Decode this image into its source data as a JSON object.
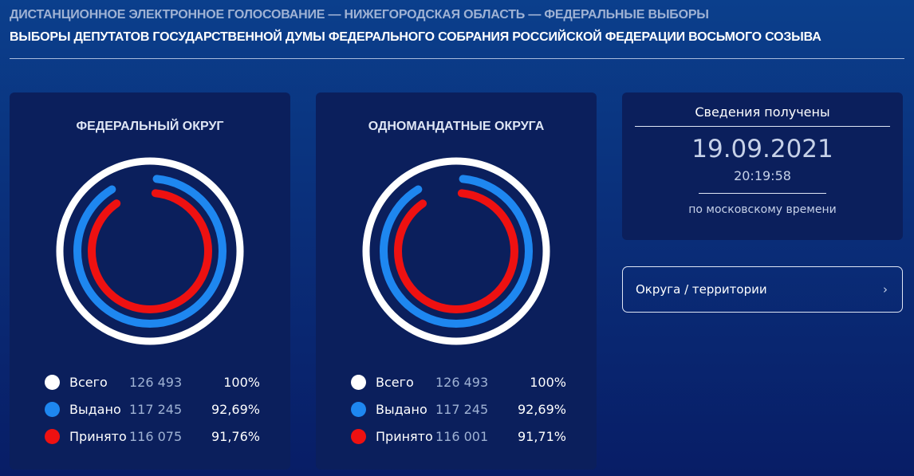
{
  "header": {
    "subtitle": "ДИСТАНЦИОННОЕ ЭЛЕКТРОННОЕ ГОЛОСОВАНИЕ — НИЖЕГОРОДСКАЯ ОБЛАСТЬ — ФЕДЕРАЛЬНЫЕ ВЫБОРЫ",
    "title": "ВЫБОРЫ ДЕПУТАТОВ ГОСУДАРСТВЕННОЙ ДУМЫ ФЕДЕРАЛЬНОГО СОБРАНИЯ РОССИЙСКОЙ ФЕДЕРАЦИИ ВОСЬМОГО СОЗЫВА"
  },
  "colors": {
    "total": "#ffffff",
    "issued": "#1e87f0",
    "accepted": "#ee1111"
  },
  "panels": [
    {
      "title": "ФЕДЕРАЛЬНЫЙ ОКРУГ",
      "rows": [
        {
          "label": "Всего",
          "value": "126 493",
          "percent": "100%",
          "fraction": 1.0
        },
        {
          "label": "Выдано",
          "value": "117 245",
          "percent": "92,69%",
          "fraction": 0.9269
        },
        {
          "label": "Принято",
          "value": "116 075",
          "percent": "91,76%",
          "fraction": 0.9176
        }
      ]
    },
    {
      "title": "ОДНОМАНДАТНЫЕ ОКРУГА",
      "rows": [
        {
          "label": "Всего",
          "value": "126 493",
          "percent": "100%",
          "fraction": 1.0
        },
        {
          "label": "Выдано",
          "value": "117 245",
          "percent": "92,69%",
          "fraction": 0.9269
        },
        {
          "label": "Принято",
          "value": "116 001",
          "percent": "91,71%",
          "fraction": 0.9171
        }
      ]
    }
  ],
  "info": {
    "title": "Сведения получены",
    "date": "19.09.2021",
    "time": "20:19:58",
    "note": "по московскому времени"
  },
  "nav": {
    "districts_label": "Округа / территории",
    "chevron": "›"
  }
}
